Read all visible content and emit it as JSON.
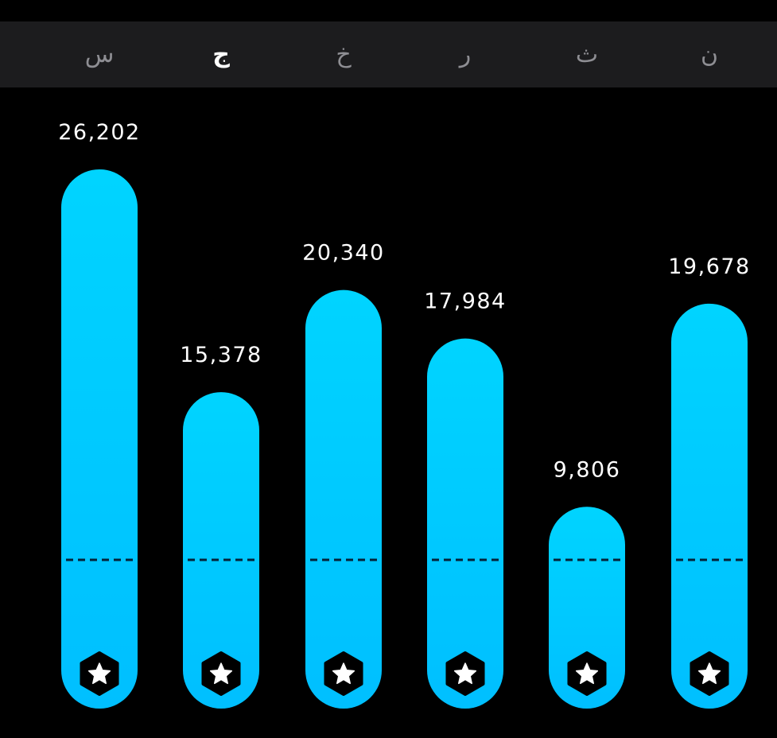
{
  "chart_data": {
    "type": "bar",
    "categories": [
      "س",
      "ج",
      "خ",
      "ر",
      "ث",
      "ن"
    ],
    "values": [
      26202,
      15378,
      20340,
      17984,
      9806,
      19678
    ],
    "value_labels": [
      "26,202",
      "15,378",
      "20,340",
      "17,984",
      "9,806",
      "19,678"
    ],
    "selected_category": "ج",
    "goal_marker": "dashed-line",
    "bar_badge_icon": "star-badge-icon",
    "colors": {
      "bar_top": "#00d4ff",
      "bar_bottom": "#00bfff",
      "background": "#000000",
      "strip": "#1c1c1e",
      "label_muted": "#8e8e93",
      "label_active": "#ffffff"
    }
  }
}
